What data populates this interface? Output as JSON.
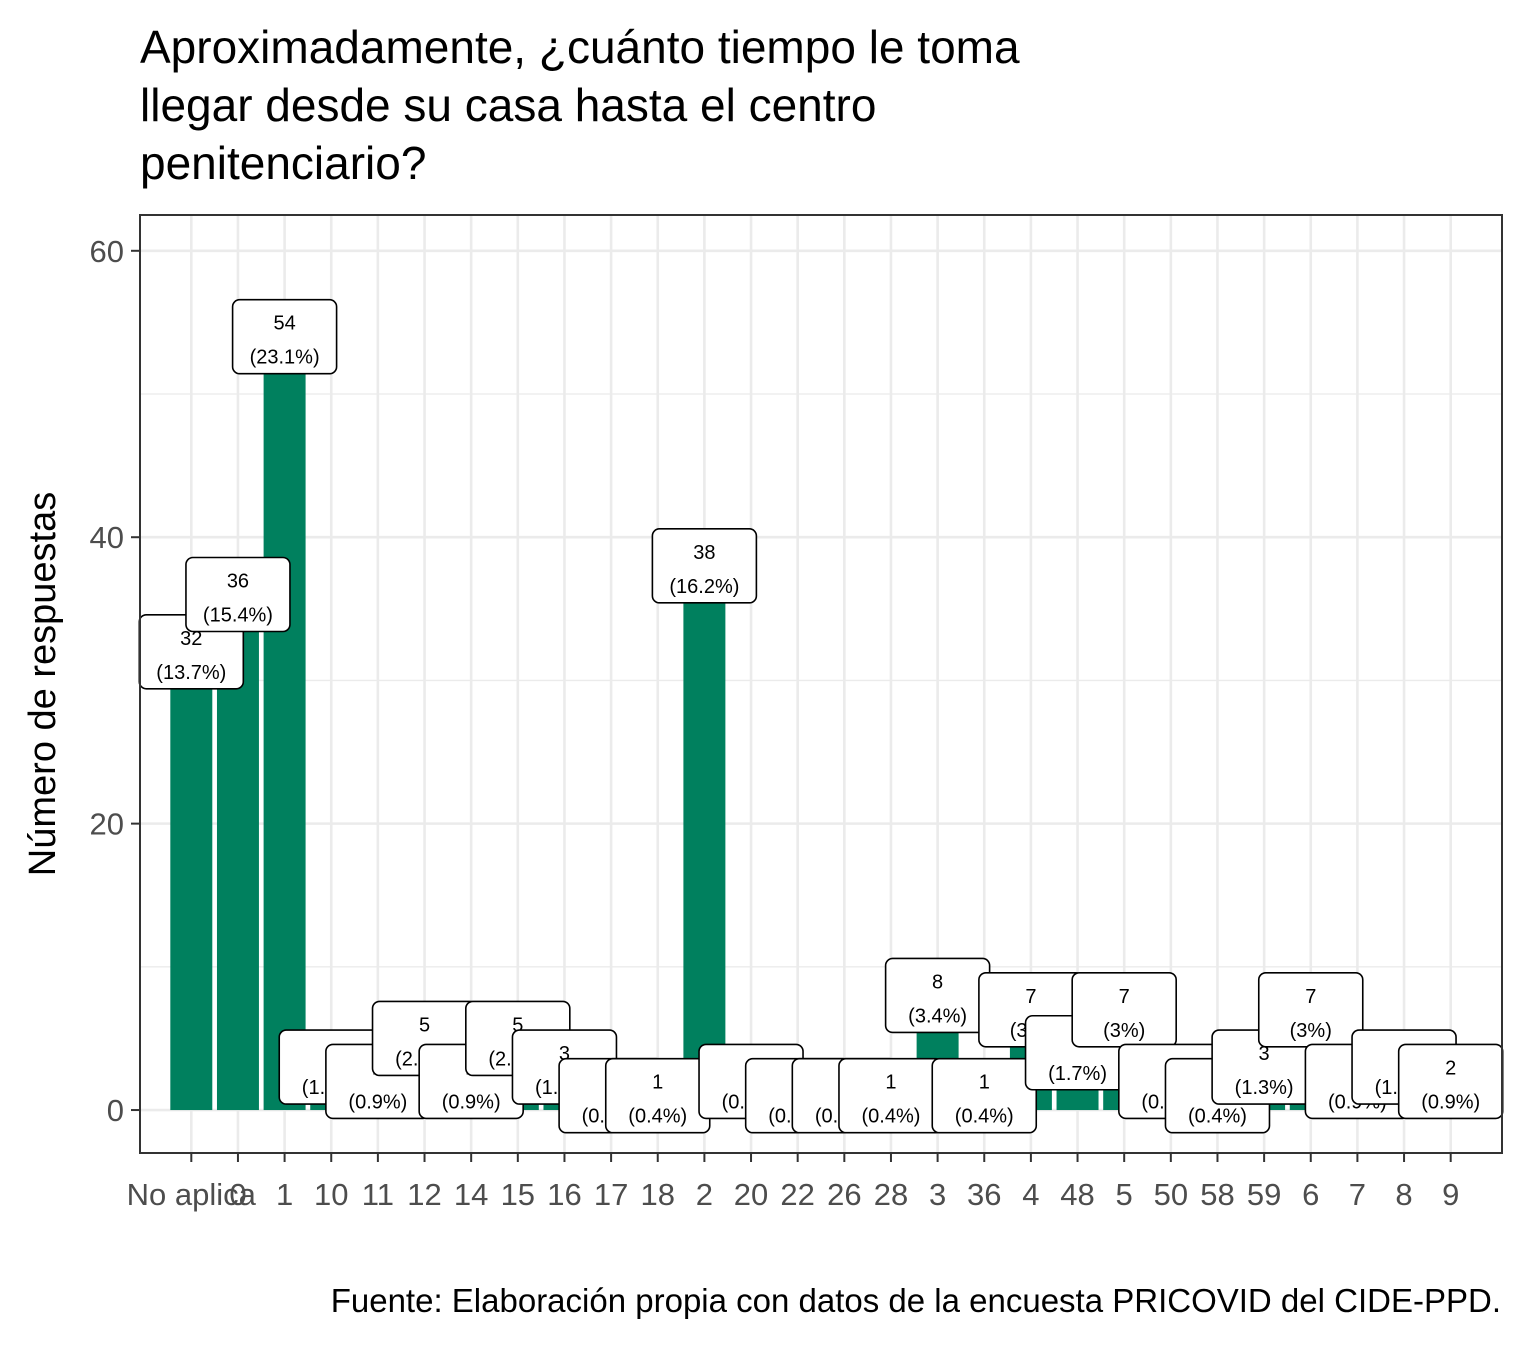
{
  "chart_data": {
    "type": "bar",
    "title": "Aproximadamente, ¿cuánto tiempo le toma\nllegar desde su casa hasta el centro\npenitenciario?",
    "caption": "Fuente: Elaboración propia con datos de la encuesta PRICOVID del CIDE-PPD.",
    "xlabel": "",
    "ylabel": "Número de respuestas",
    "ylim": [
      -3,
      62.5
    ],
    "yticks": [
      0,
      20,
      40,
      60
    ],
    "grid": true,
    "legend": "none",
    "bar_color": "#00805E",
    "categories": [
      "No aplica",
      "0",
      "1",
      "10",
      "11",
      "12",
      "14",
      "15",
      "16",
      "17",
      "18",
      "2",
      "20",
      "22",
      "26",
      "28",
      "3",
      "36",
      "4",
      "48",
      "5",
      "50",
      "58",
      "59",
      "6",
      "7",
      "8",
      "9"
    ],
    "values": [
      32,
      36,
      54,
      3,
      2,
      5,
      2,
      5,
      3,
      1,
      1,
      38,
      2,
      1,
      1,
      1,
      8,
      1,
      7,
      4,
      7,
      2,
      1,
      3,
      7,
      2,
      3,
      2
    ],
    "data_labels": [
      {
        "count": "32",
        "pct": "(13.7%)"
      },
      {
        "count": "36",
        "pct": "(15.4%)"
      },
      {
        "count": "54",
        "pct": "(23.1%)"
      },
      {
        "count": "3",
        "pct": "(1.3%)"
      },
      {
        "count": "2",
        "pct": "(0.9%)"
      },
      {
        "count": "5",
        "pct": "(2.1%)"
      },
      {
        "count": "2",
        "pct": "(0.9%)"
      },
      {
        "count": "5",
        "pct": "(2.1%)"
      },
      {
        "count": "3",
        "pct": "(1.3%)"
      },
      {
        "count": "1",
        "pct": "(0.4%)"
      },
      {
        "count": "1",
        "pct": "(0.4%)"
      },
      {
        "count": "38",
        "pct": "(16.2%)"
      },
      {
        "count": "2",
        "pct": "(0.9%)"
      },
      {
        "count": "1",
        "pct": "(0.4%)"
      },
      {
        "count": "1",
        "pct": "(0.4%)"
      },
      {
        "count": "1",
        "pct": "(0.4%)"
      },
      {
        "count": "8",
        "pct": "(3.4%)"
      },
      {
        "count": "1",
        "pct": "(0.4%)"
      },
      {
        "count": "7",
        "pct": "(3%)"
      },
      {
        "count": "4",
        "pct": "(1.7%)"
      },
      {
        "count": "7",
        "pct": "(3%)"
      },
      {
        "count": "2",
        "pct": "(0.9%)"
      },
      {
        "count": "1",
        "pct": "(0.4%)"
      },
      {
        "count": "3",
        "pct": "(1.3%)"
      },
      {
        "count": "7",
        "pct": "(3%)"
      },
      {
        "count": "2",
        "pct": "(0.9%)"
      },
      {
        "count": "3",
        "pct": "(1.3%)"
      },
      {
        "count": "2",
        "pct": "(0.9%)"
      }
    ]
  }
}
